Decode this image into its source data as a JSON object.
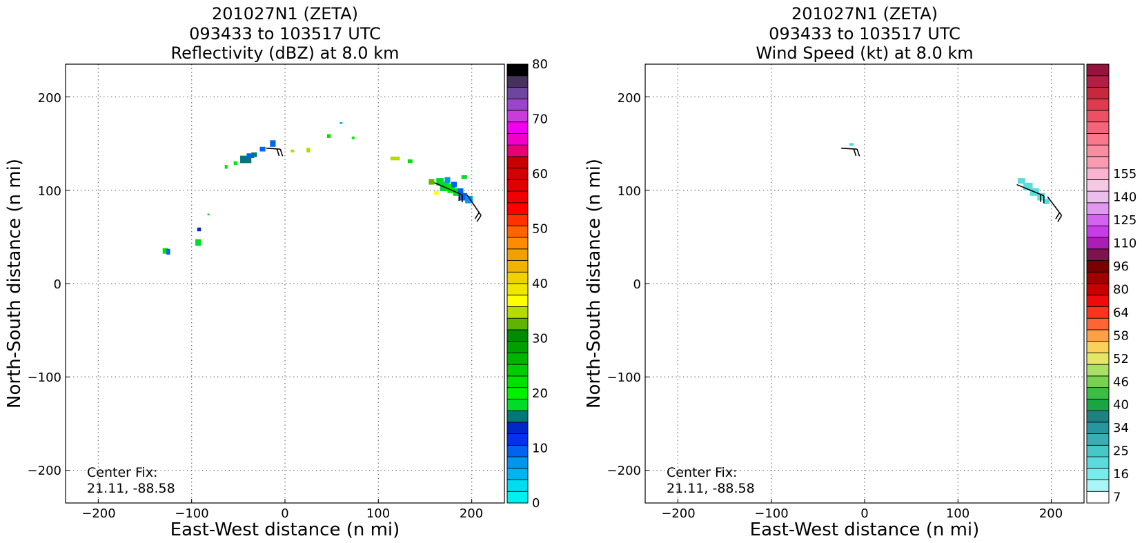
{
  "charts": [
    {
      "id": "reflectivity",
      "title_lines": [
        "201027N1 (ZETA)",
        "093433 to 103517 UTC",
        "Reflectivity (dBZ) at 8.0 km"
      ],
      "xlabel": "East-West distance (n mi)",
      "ylabel": "North-South distance (n mi)",
      "x_ticks": [
        "−200",
        "−100",
        "0",
        "100",
        "200"
      ],
      "y_ticks": [
        "200",
        "100",
        "0",
        "−100",
        "−200"
      ],
      "annotation_lines": [
        "Center Fix:",
        "21.11, -88.58"
      ],
      "colorbar": {
        "tick_labels": [
          "0",
          "10",
          "20",
          "30",
          "40",
          "50",
          "60",
          "70",
          "80"
        ],
        "colors": [
          "#00f0f0",
          "#00dcf0",
          "#00b4f0",
          "#0096f0",
          "#0064f0",
          "#0032f0",
          "#0028c8",
          "#007878",
          "#00dc28",
          "#00f000",
          "#00e100",
          "#00cd00",
          "#00b400",
          "#00a000",
          "#008c00",
          "#60b400",
          "#b4dc00",
          "#ffff00",
          "#f0e600",
          "#f0d200",
          "#f0b400",
          "#f0a000",
          "#ff8c00",
          "#ff6400",
          "#ff3200",
          "#ff0000",
          "#f00000",
          "#e10000",
          "#d20000",
          "#c80000",
          "#e6007a",
          "#f000c8",
          "#f000f0",
          "#c83cdc",
          "#9b46c8",
          "#6e46a0",
          "#46325a",
          "#000000"
        ]
      }
    },
    {
      "id": "wind-speed",
      "title_lines": [
        "201027N1 (ZETA)",
        "093433 to 103517 UTC",
        "Wind Speed (kt) at 8.0 km"
      ],
      "xlabel": "East-West distance (n mi)",
      "ylabel": "North-South distance (n mi)",
      "x_ticks": [
        "−200",
        "−100",
        "0",
        "100",
        "200"
      ],
      "y_ticks": [
        "200",
        "100",
        "0",
        "−100",
        "−200"
      ],
      "annotation_lines": [
        "Center Fix:",
        "21.11, -88.58"
      ],
      "colorbar": {
        "tick_labels": [
          "7",
          "16",
          "25",
          "34",
          "40",
          "46",
          "52",
          "58",
          "64",
          "80",
          "96",
          "110",
          "125",
          "140",
          "155"
        ],
        "colors": [
          "#ffffff",
          "#aaf5f5",
          "#78ebeb",
          "#5adcdc",
          "#46c8c8",
          "#37afb4",
          "#2896a0",
          "#1e8282",
          "#19a546",
          "#3cbe46",
          "#78d250",
          "#aae164",
          "#e6e664",
          "#fad25a",
          "#ffa046",
          "#ff6432",
          "#ff321e",
          "#f00a0a",
          "#c80000",
          "#a00000",
          "#780000",
          "#7d1450",
          "#aa1eb4",
          "#c83ce6",
          "#d264f0",
          "#e196f0",
          "#ebbeeb",
          "#f5c8e6",
          "#fab4d2",
          "#fa9bb4",
          "#fa8ca0",
          "#fa788c",
          "#f56478",
          "#eb5064",
          "#dc3c50",
          "#c8283c",
          "#b41e46",
          "#96143c"
        ]
      }
    }
  ],
  "chart_data": [
    {
      "type": "heatmap",
      "title": "201027N1 (ZETA) 093433 to 103517 UTC Reflectivity (dBZ) at 8.0 km",
      "xlabel": "East-West distance (n mi)",
      "ylabel": "North-South distance (n mi)",
      "xlim": [
        -235,
        235
      ],
      "ylim": [
        -235,
        235
      ],
      "x_ticks": [
        -200,
        -100,
        0,
        100,
        200
      ],
      "y_ticks": [
        -200,
        -100,
        0,
        100,
        200
      ],
      "grid": true,
      "colorbar": {
        "label": "Reflectivity (dBZ)",
        "min": 0,
        "max": 80,
        "step": 2.5,
        "ticks": [
          0,
          10,
          20,
          30,
          40,
          50,
          60,
          70,
          80
        ]
      },
      "cells": [
        {
          "x": -128,
          "y": 35,
          "v": 25,
          "w": 6,
          "h": 6
        },
        {
          "x": -125,
          "y": 34,
          "v": 12,
          "w": 4,
          "h": 6
        },
        {
          "x": -93,
          "y": 44,
          "v": 20,
          "w": 6,
          "h": 7
        },
        {
          "x": -92,
          "y": 58,
          "v": 17,
          "w": 4,
          "h": 4
        },
        {
          "x": -82,
          "y": 74,
          "v": 22,
          "w": 2,
          "h": 2
        },
        {
          "x": -63,
          "y": 125,
          "v": 27,
          "w": 3,
          "h": 4
        },
        {
          "x": -53,
          "y": 129,
          "v": 23,
          "w": 4,
          "h": 4
        },
        {
          "x": -42,
          "y": 133,
          "v": 18,
          "w": 12,
          "h": 8
        },
        {
          "x": -37,
          "y": 137,
          "v": 10,
          "w": 8,
          "h": 5
        },
        {
          "x": -33,
          "y": 138,
          "v": 19,
          "w": 6,
          "h": 5
        },
        {
          "x": -24,
          "y": 144,
          "v": 12,
          "w": 6,
          "h": 5
        },
        {
          "x": -13,
          "y": 150,
          "v": 11,
          "w": 6,
          "h": 7
        },
        {
          "x": 8,
          "y": 142,
          "v": 40,
          "w": 4,
          "h": 3
        },
        {
          "x": 25,
          "y": 143,
          "v": 42,
          "w": 4,
          "h": 5
        },
        {
          "x": 47,
          "y": 158,
          "v": 27,
          "w": 4,
          "h": 4
        },
        {
          "x": 60,
          "y": 172,
          "v": 7,
          "w": 3,
          "h": 2
        },
        {
          "x": 73,
          "y": 156,
          "v": 24,
          "w": 3,
          "h": 3
        },
        {
          "x": 118,
          "y": 134,
          "v": 40,
          "w": 10,
          "h": 4
        },
        {
          "x": 134,
          "y": 131,
          "v": 25,
          "w": 5,
          "h": 4
        },
        {
          "x": 157,
          "y": 109,
          "v": 38,
          "w": 6,
          "h": 6
        },
        {
          "x": 162,
          "y": 97,
          "v": 43,
          "w": 5,
          "h": 4
        },
        {
          "x": 166,
          "y": 109,
          "v": 22,
          "w": 8,
          "h": 8
        },
        {
          "x": 171,
          "y": 104,
          "v": 20,
          "w": 10,
          "h": 10
        },
        {
          "x": 174,
          "y": 111,
          "v": 9,
          "w": 6,
          "h": 6
        },
        {
          "x": 178,
          "y": 102,
          "v": 24,
          "w": 8,
          "h": 10
        },
        {
          "x": 181,
          "y": 106,
          "v": 11,
          "w": 6,
          "h": 6
        },
        {
          "x": 184,
          "y": 98,
          "v": 21,
          "w": 8,
          "h": 8
        },
        {
          "x": 188,
          "y": 99,
          "v": 10,
          "w": 6,
          "h": 6
        },
        {
          "x": 191,
          "y": 93,
          "v": 12,
          "w": 8,
          "h": 8
        },
        {
          "x": 197,
          "y": 90,
          "v": 8,
          "w": 8,
          "h": 8
        },
        {
          "x": 192,
          "y": 114,
          "v": 22,
          "w": 6,
          "h": 4
        }
      ],
      "wind_barbs": [
        {
          "x": -20,
          "y": 145,
          "end_x": -5,
          "end_y": 144,
          "speed_kt": 20
        },
        {
          "x": 160,
          "y": 108,
          "end_x": 190,
          "end_y": 95,
          "speed_kt": 20
        },
        {
          "x": 195,
          "y": 95,
          "end_x": 210,
          "end_y": 73,
          "speed_kt": 20
        }
      ]
    },
    {
      "type": "heatmap",
      "title": "201027N1 (ZETA) 093433 to 103517 UTC Wind Speed (kt) at 8.0 km",
      "xlabel": "East-West distance (n mi)",
      "ylabel": "North-South distance (n mi)",
      "xlim": [
        -235,
        235
      ],
      "ylim": [
        -235,
        235
      ],
      "x_ticks": [
        -200,
        -100,
        0,
        100,
        200
      ],
      "y_ticks": [
        -200,
        -100,
        0,
        100,
        200
      ],
      "grid": true,
      "colorbar": {
        "label": "Wind Speed (kt)",
        "ticks": [
          7,
          16,
          25,
          34,
          40,
          46,
          52,
          58,
          64,
          80,
          96,
          110,
          125,
          140,
          155
        ]
      },
      "cells": [
        {
          "x": -14,
          "y": 149,
          "v": 20,
          "w": 5,
          "h": 3
        },
        {
          "x": 168,
          "y": 110,
          "v": 24,
          "w": 8,
          "h": 6
        },
        {
          "x": 175,
          "y": 104,
          "v": 22,
          "w": 10,
          "h": 8
        },
        {
          "x": 182,
          "y": 98,
          "v": 20,
          "w": 10,
          "h": 8
        },
        {
          "x": 189,
          "y": 93,
          "v": 20,
          "w": 8,
          "h": 8
        },
        {
          "x": 195,
          "y": 88,
          "v": 18,
          "w": 6,
          "h": 6
        }
      ],
      "wind_barbs": [
        {
          "x": -25,
          "y": 145,
          "end_x": -8,
          "end_y": 144,
          "speed_kt": 20
        },
        {
          "x": 163,
          "y": 106,
          "end_x": 192,
          "end_y": 94,
          "speed_kt": 20
        },
        {
          "x": 196,
          "y": 93,
          "end_x": 211,
          "end_y": 73,
          "speed_kt": 20
        }
      ]
    }
  ]
}
